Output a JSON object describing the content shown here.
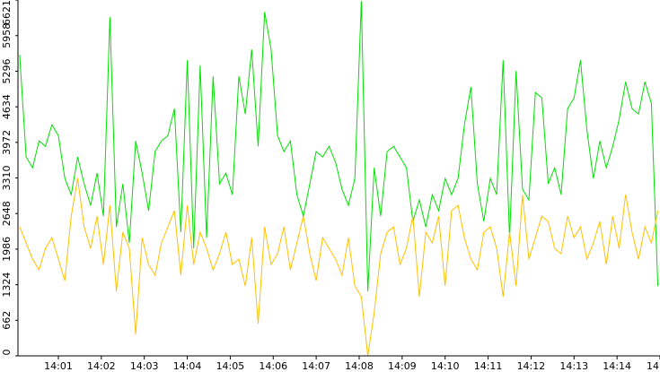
{
  "chart_data": {
    "type": "line",
    "x": [
      0.1,
      0.25,
      0.4,
      0.55,
      0.7,
      0.85,
      1,
      1.15,
      1.3,
      1.45,
      1.6,
      1.75,
      1.9,
      2.05,
      2.2,
      2.35,
      2.5,
      2.65,
      2.8,
      2.95,
      3.1,
      3.25,
      3.4,
      3.55,
      3.7,
      3.85,
      4,
      4.15,
      4.3,
      4.45,
      4.6,
      4.75,
      4.9,
      5.05,
      5.2,
      5.35,
      5.5,
      5.65,
      5.8,
      5.95,
      6.1,
      6.25,
      6.4,
      6.55,
      6.7,
      6.85,
      7,
      7.15,
      7.3,
      7.45,
      7.6,
      7.75,
      7.9,
      8.05,
      8.2,
      8.35,
      8.5,
      8.65,
      8.8,
      8.95,
      9.1,
      9.25,
      9.4,
      9.55,
      9.7,
      9.85,
      10,
      10.15,
      10.3,
      10.45,
      10.6,
      10.75,
      10.9,
      11.05,
      11.2,
      11.35,
      11.5,
      11.65,
      11.8,
      11.95,
      12.1,
      12.25,
      12.4,
      12.55,
      12.7,
      12.85,
      13,
      13.15,
      13.3,
      13.45,
      13.6,
      13.75,
      13.9,
      14.05,
      14.2,
      14.35,
      14.5,
      14.65,
      14.8,
      14.95
    ],
    "series": [
      {
        "color": "#00e000",
        "values": [
          5600,
          3700,
          3500,
          4000,
          3900,
          4300,
          4100,
          3300,
          3000,
          3700,
          3200,
          2800,
          3400,
          2600,
          6300,
          2400,
          3200,
          2100,
          4000,
          3400,
          2700,
          3800,
          4000,
          4100,
          4600,
          2300,
          5500,
          2000,
          5400,
          2200,
          5200,
          3200,
          3400,
          3000,
          5200,
          4500,
          5700,
          3900,
          6400,
          5700,
          4100,
          3800,
          4000,
          3000,
          2600,
          3200,
          3800,
          3700,
          3900,
          3600,
          3100,
          2800,
          3300,
          6600,
          1200,
          3500,
          2600,
          3800,
          3900,
          3700,
          3500,
          2500,
          2900,
          2400,
          3000,
          2700,
          3300,
          3000,
          3300,
          4300,
          5000,
          3200,
          2500,
          3300,
          3000,
          5500,
          2200,
          5300,
          3100,
          2900,
          4900,
          4800,
          3200,
          3500,
          3000,
          4600,
          4800,
          5500,
          4200,
          3300,
          4000,
          3500,
          3900,
          4400,
          5100,
          4600,
          4500,
          5100,
          4700,
          1300
        ]
      },
      {
        "color": "#ffc000",
        "values": [
          2400,
          2100,
          1800,
          1600,
          2000,
          2200,
          1800,
          1400,
          2600,
          3300,
          2400,
          2000,
          2600,
          1700,
          2800,
          1200,
          2300,
          2000,
          400,
          2200,
          1700,
          1500,
          2100,
          2400,
          2700,
          1500,
          2800,
          1700,
          2300,
          2000,
          1600,
          1900,
          2300,
          1700,
          1800,
          1300,
          2200,
          600,
          2400,
          1700,
          1900,
          2400,
          1600,
          2100,
          2600,
          1900,
          1400,
          2200,
          2000,
          1800,
          1500,
          2200,
          1300,
          1100,
          0,
          800,
          1900,
          2300,
          2400,
          1700,
          2000,
          2600,
          1100,
          2300,
          2100,
          2600,
          1300,
          2700,
          2800,
          2200,
          1800,
          1600,
          2300,
          2400,
          2000,
          1100,
          2300,
          1300,
          3000,
          1800,
          2200,
          2600,
          2500,
          2000,
          1900,
          2600,
          2200,
          2400,
          1800,
          2100,
          2500,
          1700,
          2600,
          2000,
          3000,
          2300,
          1800,
          2400,
          2100,
          2700
        ]
      }
    ],
    "xlim": [
      0.06,
      15
    ],
    "xticks": [
      {
        "value": 1,
        "label": "14:01"
      },
      {
        "value": 2,
        "label": "14:02"
      },
      {
        "value": 3,
        "label": "14:03"
      },
      {
        "value": 4,
        "label": "14:04"
      },
      {
        "value": 5,
        "label": "14:05"
      },
      {
        "value": 6,
        "label": "14:06"
      },
      {
        "value": 7,
        "label": "14:07"
      },
      {
        "value": 8,
        "label": "14:08"
      },
      {
        "value": 9,
        "label": "14:09"
      },
      {
        "value": 10,
        "label": "14:10"
      },
      {
        "value": 11,
        "label": "14:11"
      },
      {
        "value": 12,
        "label": "14:12"
      },
      {
        "value": 13,
        "label": "14:13"
      },
      {
        "value": 14,
        "label": "14:14"
      },
      {
        "value": 15,
        "label": "14"
      }
    ],
    "ylim": [
      0,
      6621
    ],
    "yticks": [
      0,
      662,
      1324,
      1986,
      2648,
      3310,
      3972,
      4634,
      5296,
      5958,
      6621
    ],
    "grid": false
  }
}
